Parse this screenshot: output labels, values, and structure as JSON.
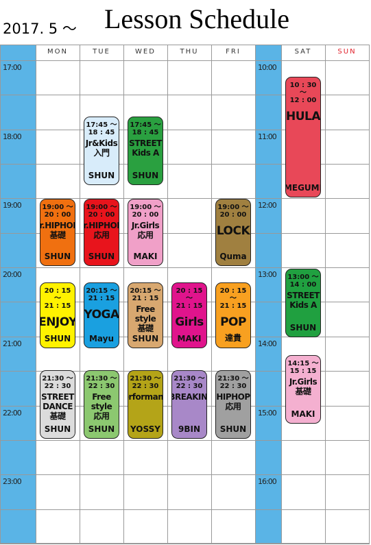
{
  "header": {
    "period": "2017. 5 ～",
    "title": "Lesson Schedule"
  },
  "times_left": [
    "17:00",
    "18:00",
    "19:00",
    "20:00",
    "21:00",
    "22:00",
    "23:00"
  ],
  "times_right": [
    "10:00",
    "11:00",
    "12:00",
    "13:00",
    "14:00",
    "15:00",
    "16:00"
  ],
  "columns": [
    {
      "day": "MON",
      "lessons": [
        {
          "time": [
            "19:00 ～",
            "20 : 00"
          ],
          "name": [
            "Jr.HIPHOP",
            "基礎"
          ],
          "teacher": "SHUN"
        },
        {
          "time": [
            "20 : 15 ～",
            "21 : 15"
          ],
          "name": [
            "ENJOY"
          ],
          "teacher": "SHUN"
        },
        {
          "time": [
            "21:30 ～",
            "22 : 30"
          ],
          "name": [
            "STREET",
            "DANCE",
            "基礎"
          ],
          "teacher": "SHUN"
        }
      ]
    },
    {
      "day": "TUE",
      "lessons": [
        {
          "time": [
            "17:45 ～",
            "18 : 45"
          ],
          "name": [
            "Jr&Kids",
            "入門"
          ],
          "teacher": "SHUN"
        },
        {
          "time": [
            "19:00 ～",
            "20 : 00"
          ],
          "name": [
            "Jr.HIPHOP",
            "応用"
          ],
          "teacher": "SHUN"
        },
        {
          "time": [
            "20:15 ～",
            "21 : 15"
          ],
          "name": [
            "YOGA"
          ],
          "teacher": "Mayu"
        },
        {
          "time": [
            "21:30 ～",
            "22 : 30"
          ],
          "name": [
            "Free style",
            "応用"
          ],
          "teacher": "SHUN"
        }
      ]
    },
    {
      "day": "WED",
      "lessons": [
        {
          "time": [
            "17:45 ～",
            "18 : 45"
          ],
          "name": [
            "STREET",
            "Kids  A"
          ],
          "teacher": "SHUN"
        },
        {
          "time": [
            "19:00 ～",
            "20 : 00"
          ],
          "name": [
            "Jr.Girls",
            "応用"
          ],
          "teacher": "MAKI"
        },
        {
          "time": [
            "20:15 ～",
            "21 : 15"
          ],
          "name": [
            "Free style",
            "基礎"
          ],
          "teacher": "SHUN"
        },
        {
          "time": [
            "21:30 ～",
            "22 : 30"
          ],
          "name": [
            "Performance"
          ],
          "teacher": "YOSSY"
        }
      ]
    },
    {
      "day": "THU",
      "lessons": [
        {
          "time": [
            "20 : 15 ～",
            "21 : 15"
          ],
          "name": [
            "Girls"
          ],
          "teacher": "MAKI"
        },
        {
          "time": [
            "21:30 ～",
            "22 : 30"
          ],
          "name": [
            "BREAKIN'"
          ],
          "teacher": "9BIN"
        }
      ]
    },
    {
      "day": "FRI",
      "lessons": [
        {
          "time": [
            "19:00 ～",
            "20 : 00"
          ],
          "name": [
            "LOCK"
          ],
          "teacher": "Quma"
        },
        {
          "time": [
            "20 : 15 ～",
            "21 : 15"
          ],
          "name": [
            "POP"
          ],
          "teacher": "達貴"
        },
        {
          "time": [
            "21:30 ～",
            "22 : 30"
          ],
          "name": [
            "HIPHOP",
            "応用"
          ],
          "teacher": "SHUN"
        }
      ]
    },
    {
      "day": "SAT",
      "lessons": [
        {
          "time": [
            "10 : 30 ～",
            "12 : 00"
          ],
          "name": [
            "HULA"
          ],
          "teacher": "MEGUMI"
        },
        {
          "time": [
            "13:00 ～",
            "14 : 00"
          ],
          "name": [
            "STREET",
            "Kids  A"
          ],
          "teacher": "SHUN"
        },
        {
          "time": [
            "14:15 ～",
            "15 : 15"
          ],
          "name": [
            "Jr.Girls",
            "基礎"
          ],
          "teacher": "MAKI"
        }
      ]
    },
    {
      "day": "SUN",
      "lessons": []
    }
  ]
}
